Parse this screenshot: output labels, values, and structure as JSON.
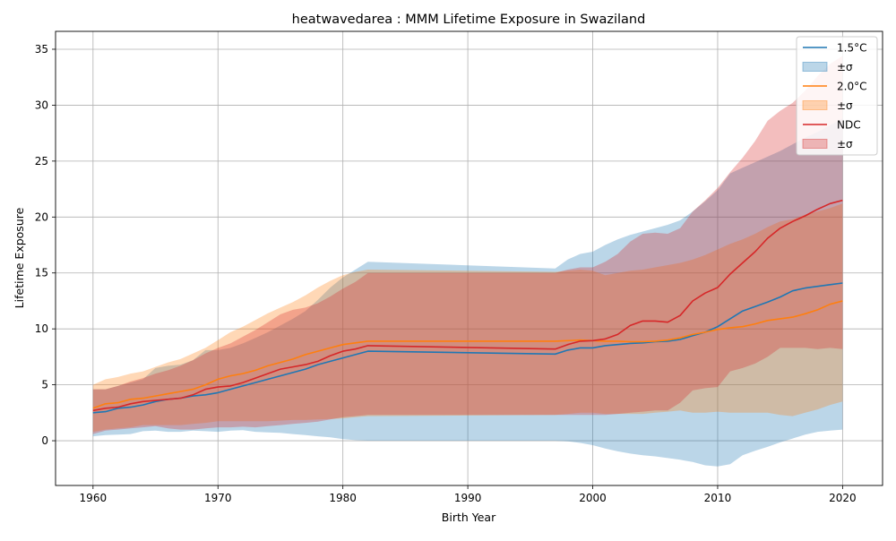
{
  "chart_data": {
    "type": "area",
    "title": "heatwavedarea : MMM Lifetime Exposure in Swaziland",
    "xlabel": "Birth Year",
    "ylabel": "Lifetime Exposure",
    "xlim": [
      1957,
      2023.2
    ],
    "ylim": [
      -4.0,
      36.6
    ],
    "xticks": [
      1960,
      1970,
      1980,
      1990,
      2000,
      2010,
      2020
    ],
    "yticks": [
      0,
      5,
      10,
      15,
      20,
      25,
      30,
      35
    ],
    "grid": true,
    "legend_position": "top-right",
    "x": [
      1960,
      1961,
      1962,
      1963,
      1964,
      1965,
      1966,
      1967,
      1968,
      1969,
      1970,
      1971,
      1972,
      1973,
      1974,
      1975,
      1976,
      1977,
      1978,
      1979,
      1980,
      1981,
      1982,
      1997,
      1998,
      1999,
      2000,
      2001,
      2002,
      2003,
      2004,
      2005,
      2006,
      2007,
      2008,
      2009,
      2010,
      2011,
      2012,
      2013,
      2014,
      2015,
      2016,
      2017,
      2018,
      2019,
      2020
    ],
    "series": [
      {
        "name": "1.5°C",
        "band_label": "±σ",
        "color": "#1f77b4",
        "band_color": "#1f77b4",
        "mean": [
          2.5,
          2.6,
          2.9,
          3.0,
          3.2,
          3.5,
          3.7,
          3.8,
          4.0,
          4.1,
          4.3,
          4.6,
          4.9,
          5.2,
          5.5,
          5.8,
          6.1,
          6.4,
          6.8,
          7.1,
          7.4,
          7.7,
          8.0,
          7.75,
          8.1,
          8.3,
          8.3,
          8.5,
          8.6,
          8.7,
          8.75,
          8.85,
          8.9,
          9.05,
          9.4,
          9.7,
          10.2,
          10.9,
          11.6,
          12.0,
          12.4,
          12.85,
          13.4,
          13.65,
          13.8,
          13.95,
          14.1
        ],
        "upper": [
          4.6,
          4.6,
          4.9,
          5.2,
          5.5,
          6.5,
          6.7,
          6.8,
          7.2,
          8.1,
          8.1,
          8.3,
          8.7,
          9.2,
          9.7,
          10.3,
          10.9,
          11.6,
          12.6,
          13.7,
          14.6,
          15.3,
          16.0,
          15.4,
          16.2,
          16.7,
          16.9,
          17.5,
          18.0,
          18.4,
          18.7,
          19.0,
          19.3,
          19.7,
          20.5,
          21.4,
          22.4,
          23.9,
          24.4,
          24.9,
          25.4,
          25.9,
          26.5,
          27.1,
          27.6,
          28.2,
          28.8
        ],
        "lower": [
          0.4,
          0.5,
          0.55,
          0.6,
          0.85,
          0.9,
          0.8,
          0.8,
          0.9,
          0.85,
          0.8,
          0.9,
          0.95,
          0.8,
          0.75,
          0.7,
          0.6,
          0.5,
          0.4,
          0.3,
          0.15,
          0.05,
          0.0,
          0.0,
          -0.05,
          -0.2,
          -0.4,
          -0.7,
          -0.95,
          -1.15,
          -1.3,
          -1.4,
          -1.55,
          -1.7,
          -1.9,
          -2.2,
          -2.3,
          -2.1,
          -1.3,
          -0.9,
          -0.55,
          -0.15,
          0.2,
          0.55,
          0.8,
          0.9,
          1.0
        ]
      },
      {
        "name": "2.0°C",
        "band_label": "±σ",
        "color": "#ff7f0e",
        "band_color": "#ff7f0e",
        "mean": [
          2.9,
          3.3,
          3.4,
          3.7,
          3.8,
          4.0,
          4.2,
          4.4,
          4.6,
          5.0,
          5.5,
          5.8,
          6.0,
          6.3,
          6.7,
          7.0,
          7.3,
          7.7,
          8.0,
          8.3,
          8.6,
          8.75,
          8.9,
          8.9,
          8.95,
          9.0,
          8.95,
          8.9,
          8.9,
          8.85,
          8.85,
          8.9,
          9.0,
          9.2,
          9.5,
          9.7,
          9.95,
          10.1,
          10.2,
          10.45,
          10.75,
          10.9,
          11.05,
          11.35,
          11.7,
          12.2,
          12.5
        ],
        "upper": [
          5.0,
          5.5,
          5.7,
          6.0,
          6.2,
          6.6,
          7.0,
          7.3,
          7.8,
          8.3,
          9.0,
          9.7,
          10.2,
          10.8,
          11.4,
          11.9,
          12.4,
          13.0,
          13.7,
          14.3,
          14.8,
          15.1,
          15.3,
          15.1,
          15.2,
          15.3,
          15.2,
          14.8,
          15.0,
          15.2,
          15.3,
          15.5,
          15.7,
          15.9,
          16.2,
          16.6,
          17.1,
          17.6,
          18.0,
          18.5,
          19.1,
          19.6,
          19.8,
          20.2,
          20.5,
          20.8,
          21.2
        ],
        "lower": [
          0.8,
          1.0,
          1.1,
          1.2,
          1.4,
          1.4,
          1.4,
          1.4,
          1.5,
          1.6,
          1.75,
          1.75,
          1.75,
          1.75,
          1.75,
          1.8,
          1.85,
          1.85,
          1.9,
          1.95,
          2.0,
          2.1,
          2.2,
          2.3,
          2.4,
          2.5,
          2.5,
          2.4,
          2.4,
          2.4,
          2.4,
          2.5,
          2.6,
          2.7,
          2.5,
          2.5,
          2.6,
          2.5,
          2.5,
          2.5,
          2.5,
          2.3,
          2.2,
          2.5,
          2.8,
          3.2,
          3.5
        ]
      },
      {
        "name": "NDC",
        "band_label": "±σ",
        "color": "#d62728",
        "band_color": "#d62728",
        "mean": [
          2.7,
          2.9,
          3.0,
          3.3,
          3.5,
          3.6,
          3.7,
          3.8,
          4.1,
          4.6,
          4.8,
          4.9,
          5.2,
          5.6,
          6.0,
          6.4,
          6.6,
          6.8,
          7.1,
          7.6,
          8.0,
          8.2,
          8.5,
          8.2,
          8.6,
          8.9,
          8.95,
          9.1,
          9.5,
          10.3,
          10.7,
          10.7,
          10.6,
          11.2,
          12.5,
          13.2,
          13.7,
          14.9,
          15.9,
          16.9,
          18.1,
          19.0,
          19.6,
          20.1,
          20.7,
          21.2,
          21.5
        ],
        "upper": [
          4.6,
          4.6,
          4.9,
          5.3,
          5.6,
          6.0,
          6.3,
          6.7,
          7.2,
          7.8,
          8.3,
          8.7,
          9.3,
          9.9,
          10.6,
          11.3,
          11.7,
          11.9,
          12.3,
          12.9,
          13.6,
          14.2,
          15.0,
          15.0,
          15.3,
          15.5,
          15.5,
          16.0,
          16.7,
          17.8,
          18.5,
          18.6,
          18.5,
          19.0,
          20.5,
          21.5,
          22.6,
          24.0,
          25.3,
          26.8,
          28.6,
          29.5,
          30.2,
          31.3,
          32.6,
          33.7,
          34.4
        ],
        "lower": [
          0.6,
          0.9,
          1.0,
          1.1,
          1.2,
          1.3,
          1.1,
          1.0,
          1.0,
          1.1,
          1.2,
          1.2,
          1.25,
          1.2,
          1.3,
          1.4,
          1.5,
          1.6,
          1.7,
          1.9,
          2.1,
          2.2,
          2.3,
          2.3,
          2.3,
          2.3,
          2.3,
          2.3,
          2.4,
          2.5,
          2.6,
          2.7,
          2.7,
          3.4,
          4.5,
          4.7,
          4.8,
          6.2,
          6.5,
          6.9,
          7.5,
          8.3,
          8.3,
          8.3,
          8.2,
          8.3,
          8.2
        ]
      }
    ]
  }
}
